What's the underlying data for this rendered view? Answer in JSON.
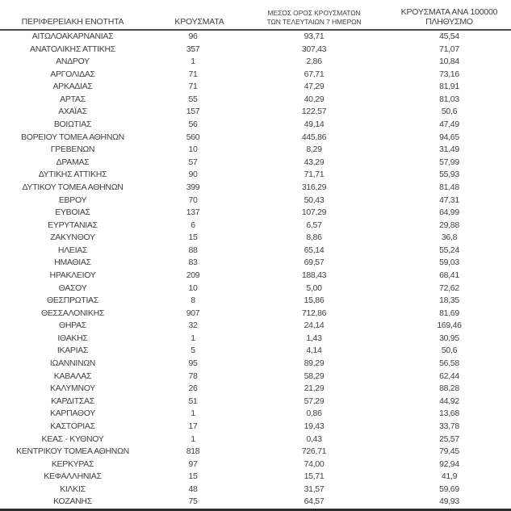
{
  "table": {
    "columns": [
      {
        "label": "ΠΕΡΙΦΕΡΕΙΑΚΗ ΕΝΟΤΗΤΑ"
      },
      {
        "label": "ΚΡΟΥΣΜΑΤΑ"
      },
      {
        "label_line1": "ΜΕΣΟΣ ΟΡΟΣ ΚΡΟΥΣΜΑΤΩΝ",
        "label_line2": "ΤΩΝ ΤΕΛΕΥΤΑΙΩΝ 7 ΗΜΕΡΩΝ"
      },
      {
        "label_line1": "ΚΡΟΥΣΜΑΤΑ ΑΝΑ 100000",
        "label_line2": "ΠΛΗΘΥΣΜΟ"
      }
    ],
    "rows": [
      [
        "ΑΙΤΩΛΟΑΚΑΡΝΑΝΙΑΣ",
        "96",
        "93,71",
        "45,54"
      ],
      [
        "ΑΝΑΤΟΛΙΚΗΣ ΑΤΤΙΚΗΣ",
        "357",
        "307,43",
        "71,07"
      ],
      [
        "ΑΝΔΡΟΥ",
        "1",
        "2,86",
        "10,84"
      ],
      [
        "ΑΡΓΟΛΙΔΑΣ",
        "71",
        "67,71",
        "73,16"
      ],
      [
        "ΑΡΚΑΔΙΑΣ",
        "71",
        "47,29",
        "81,91"
      ],
      [
        "ΑΡΤΑΣ",
        "55",
        "40,29",
        "81,03"
      ],
      [
        "ΑΧΑΪΑΣ",
        "157",
        "122,57",
        "50,6"
      ],
      [
        "ΒΟΙΩΤΙΑΣ",
        "56",
        "49,14",
        "47,49"
      ],
      [
        "ΒΟΡΕΙΟΥ ΤΟΜΕΑ ΑΘΗΝΩΝ",
        "560",
        "445,86",
        "94,65"
      ],
      [
        "ΓΡΕΒΕΝΩΝ",
        "10",
        "8,29",
        "31,49"
      ],
      [
        "ΔΡΑΜΑΣ",
        "57",
        "43,29",
        "57,99"
      ],
      [
        "ΔΥΤΙΚΗΣ ΑΤΤΙΚΗΣ",
        "90",
        "71,71",
        "55,93"
      ],
      [
        "ΔΥΤΙΚΟΥ ΤΟΜΕΑ ΑΘΗΝΩΝ",
        "399",
        "316,29",
        "81,48"
      ],
      [
        "ΕΒΡΟΥ",
        "70",
        "50,43",
        "47,31"
      ],
      [
        "ΕΥΒΟΙΑΣ",
        "137",
        "107,29",
        "64,99"
      ],
      [
        "ΕΥΡΥΤΑΝΙΑΣ",
        "6",
        "6,57",
        "29,88"
      ],
      [
        "ΖΑΚΥΝΘΟΥ",
        "15",
        "8,86",
        "36,8"
      ],
      [
        "ΗΛΕΙΑΣ",
        "88",
        "65,14",
        "55,24"
      ],
      [
        "ΗΜΑΘΙΑΣ",
        "83",
        "69,57",
        "59,03"
      ],
      [
        "ΗΡΑΚΛΕΙΟΥ",
        "209",
        "188,43",
        "68,41"
      ],
      [
        "ΘΑΣΟΥ",
        "10",
        "5,00",
        "72,62"
      ],
      [
        "ΘΕΣΠΡΩΤΙΑΣ",
        "8",
        "15,86",
        "18,35"
      ],
      [
        "ΘΕΣΣΑΛΟΝΙΚΗΣ",
        "907",
        "712,86",
        "81,69"
      ],
      [
        "ΘΗΡΑΣ",
        "32",
        "24,14",
        "169,46"
      ],
      [
        "ΙΘΑΚΗΣ",
        "1",
        "1,43",
        "30,95"
      ],
      [
        "ΙΚΑΡΙΑΣ",
        "5",
        "4,14",
        "50,6"
      ],
      [
        "ΙΩΑΝΝΙΝΩΝ",
        "95",
        "89,29",
        "56,58"
      ],
      [
        "ΚΑΒΑΛΑΣ",
        "78",
        "58,29",
        "62,44"
      ],
      [
        "ΚΑΛΥΜΝΟΥ",
        "26",
        "21,29",
        "88,28"
      ],
      [
        "ΚΑΡΔΙΤΣΑΣ",
        "51",
        "57,29",
        "44,92"
      ],
      [
        "ΚΑΡΠΑΘΟΥ",
        "1",
        "0,86",
        "13,68"
      ],
      [
        "ΚΑΣΤΟΡΙΑΣ",
        "17",
        "19,43",
        "33,78"
      ],
      [
        "ΚΕΑΣ - ΚΥΘΝΟΥ",
        "1",
        "0,43",
        "25,57"
      ],
      [
        "ΚΕΝΤΡΙΚΟΥ ΤΟΜΕΑ ΑΘΗΝΩΝ",
        "818",
        "726,71",
        "79,45"
      ],
      [
        "ΚΕΡΚΥΡΑΣ",
        "97",
        "74,00",
        "92,94"
      ],
      [
        "ΚΕΦΑΛΛΗΝΙΑΣ",
        "15",
        "15,71",
        "41,9"
      ],
      [
        "ΚΙΛΚΙΣ",
        "48",
        "31,57",
        "59,69"
      ],
      [
        "ΚΟΖΑΝΗΣ",
        "75",
        "64,57",
        "49,93"
      ]
    ]
  },
  "colors": {
    "background": "#ffffff",
    "text": "#3f3f3f",
    "header_rule": "#4a4a4a",
    "bottom_rule": "#2e2e2e"
  }
}
